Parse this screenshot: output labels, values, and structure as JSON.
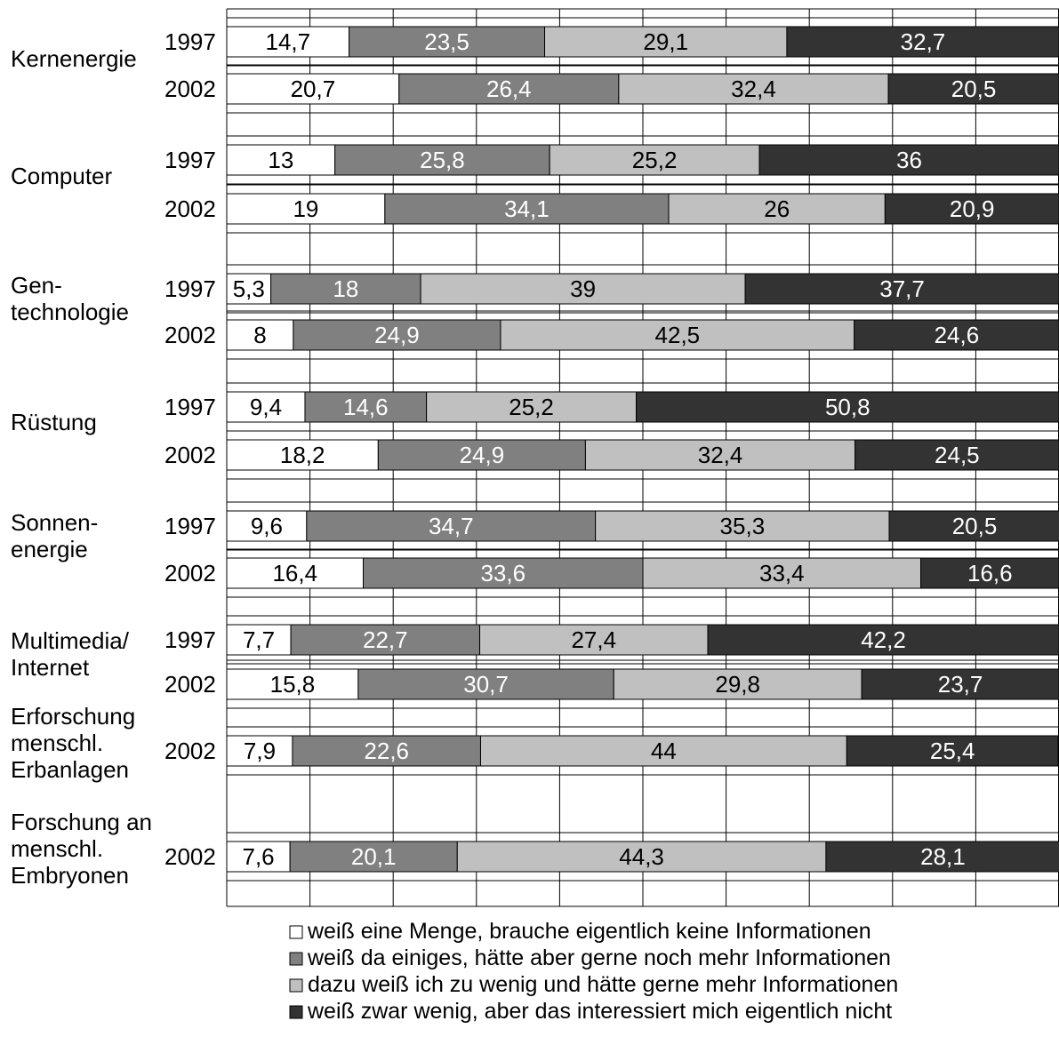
{
  "chart_data": {
    "type": "bar",
    "orientation": "horizontal",
    "stacked": true,
    "normalized": true,
    "xlim": [
      0,
      100
    ],
    "grid": true,
    "legend_position": "bottom",
    "groups": [
      {
        "label": "Kernenergie",
        "rows": [
          {
            "year": "1997",
            "values": [
              14.7,
              23.5,
              29.1,
              32.7
            ],
            "labels": [
              "14,7",
              "23,5",
              "29,1",
              "32,7"
            ]
          },
          {
            "year": "2002",
            "values": [
              20.7,
              26.4,
              32.4,
              20.5
            ],
            "labels": [
              "20,7",
              "26,4",
              "32,4",
              "20,5"
            ]
          }
        ]
      },
      {
        "label": "Computer",
        "rows": [
          {
            "year": "1997",
            "values": [
              13,
              25.8,
              25.2,
              36
            ],
            "labels": [
              "13",
              "25,8",
              "25,2",
              "36"
            ]
          },
          {
            "year": "2002",
            "values": [
              19,
              34.1,
              26,
              20.9
            ],
            "labels": [
              "19",
              "34,1",
              "26",
              "20,9"
            ]
          }
        ]
      },
      {
        "label": "Gen-\ntechnologie",
        "rows": [
          {
            "year": "1997",
            "values": [
              5.3,
              18,
              39,
              37.7
            ],
            "labels": [
              "5,3",
              "18",
              "39",
              "37,7"
            ]
          },
          {
            "year": "2002",
            "values": [
              8,
              24.9,
              42.5,
              24.6
            ],
            "labels": [
              "8",
              "24,9",
              "42,5",
              "24,6"
            ]
          }
        ]
      },
      {
        "label": "Rüstung",
        "rows": [
          {
            "year": "1997",
            "values": [
              9.4,
              14.6,
              25.2,
              50.8
            ],
            "labels": [
              "9,4",
              "14,6",
              "25,2",
              "50,8"
            ]
          },
          {
            "year": "2002",
            "values": [
              18.2,
              24.9,
              32.4,
              24.5
            ],
            "labels": [
              "18,2",
              "24,9",
              "32,4",
              "24,5"
            ]
          }
        ]
      },
      {
        "label": "Sonnen-\nenergie",
        "rows": [
          {
            "year": "1997",
            "values": [
              9.6,
              34.7,
              35.3,
              20.5
            ],
            "labels": [
              "9,6",
              "34,7",
              "35,3",
              "20,5"
            ]
          },
          {
            "year": "2002",
            "values": [
              16.4,
              33.6,
              33.4,
              16.6
            ],
            "labels": [
              "16,4",
              "33,6",
              "33,4",
              "16,6"
            ]
          }
        ]
      },
      {
        "label": "Multimedia/\nInternet",
        "rows": [
          {
            "year": "1997",
            "values": [
              7.7,
              22.7,
              27.4,
              42.2
            ],
            "labels": [
              "7,7",
              "22,7",
              "27,4",
              "42,2"
            ]
          },
          {
            "year": "2002",
            "values": [
              15.8,
              30.7,
              29.8,
              23.7
            ],
            "labels": [
              "15,8",
              "30,7",
              "29,8",
              "23,7"
            ]
          }
        ]
      },
      {
        "label": "Erforschung\nmenschl.\nErbanlagen",
        "rows": [
          {
            "year": "2002",
            "values": [
              7.9,
              22.6,
              44,
              25.4
            ],
            "labels": [
              "7,9",
              "22,6",
              "44",
              "25,4"
            ]
          }
        ]
      },
      {
        "label": "Forschung an\nmenschl.\nEmbryonen",
        "rows": [
          {
            "year": "2002",
            "values": [
              7.6,
              20.1,
              44.3,
              28.1
            ],
            "labels": [
              "7,6",
              "20,1",
              "44,3",
              "28,1"
            ]
          }
        ]
      }
    ],
    "series": [
      {
        "name": "weiß eine Menge, brauche eigentlich keine Informationen",
        "color": "#ffffff",
        "label_color": "#000000"
      },
      {
        "name": "weiß da einiges, hätte aber gerne noch mehr Informationen",
        "color": "#808080",
        "label_color": "#ffffff"
      },
      {
        "name": "dazu weiß ich zu wenig und hätte gerne mehr Informationen",
        "color": "#c0c0c0",
        "label_color": "#000000"
      },
      {
        "name": "weiß zwar wenig, aber das interessiert mich eigentlich nicht",
        "color": "#333333",
        "label_color": "#ffffff"
      }
    ]
  }
}
